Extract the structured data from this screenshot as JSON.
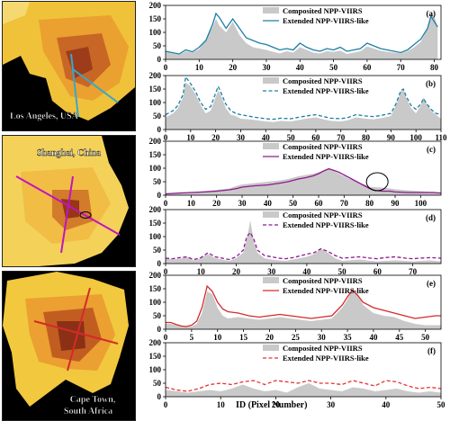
{
  "maps": [
    {
      "label_lines": [
        "Los Angeles, USA"
      ],
      "label_pos": "bottom",
      "line_color": "#3aa7c9"
    },
    {
      "label_lines": [
        "Shanghai, China"
      ],
      "label_pos": "top",
      "line_color": "#c014c0"
    },
    {
      "label_lines": [
        "Cape Town,",
        "South Africa"
      ],
      "label_pos": "bottom",
      "line_color": "#d42a2a"
    }
  ],
  "x_axis_title": "ID (Pixel Number)",
  "chart_data": [
    {
      "type": "area+line",
      "panel_label": "(a)",
      "ylim": [
        0,
        200
      ],
      "yticks": [
        0,
        50,
        100,
        150,
        200
      ],
      "xlim": [
        0,
        82
      ],
      "xticks": [
        0,
        10,
        20,
        30,
        40,
        50,
        60,
        70,
        80
      ],
      "line_color": "#1b7fa4",
      "dash": false,
      "legend": [
        "Composited NPP-VIIRS",
        "Extended NPP-VIIRS-like"
      ],
      "x": [
        0,
        2,
        4,
        6,
        8,
        10,
        12,
        14,
        15,
        16,
        18,
        20,
        22,
        24,
        26,
        28,
        30,
        32,
        34,
        36,
        38,
        40,
        42,
        44,
        46,
        48,
        50,
        52,
        54,
        56,
        58,
        60,
        62,
        64,
        66,
        68,
        70,
        72,
        74,
        76,
        78,
        79,
        80,
        81
      ],
      "composited": [
        28,
        22,
        18,
        30,
        25,
        38,
        75,
        120,
        150,
        125,
        100,
        140,
        90,
        60,
        45,
        40,
        35,
        28,
        22,
        30,
        25,
        45,
        35,
        25,
        22,
        30,
        28,
        32,
        20,
        25,
        30,
        48,
        40,
        32,
        28,
        25,
        22,
        30,
        45,
        65,
        115,
        170,
        160,
        120
      ],
      "extended": [
        30,
        25,
        20,
        35,
        28,
        45,
        70,
        130,
        170,
        155,
        115,
        150,
        115,
        80,
        70,
        60,
        55,
        45,
        35,
        40,
        35,
        60,
        45,
        35,
        30,
        40,
        35,
        45,
        30,
        35,
        40,
        60,
        50,
        40,
        35,
        30,
        25,
        35,
        55,
        75,
        115,
        160,
        140,
        120
      ]
    },
    {
      "type": "area+line",
      "panel_label": "(b)",
      "ylim": [
        0,
        200
      ],
      "yticks": [
        0,
        50,
        100,
        150,
        200
      ],
      "xlim": [
        0,
        110
      ],
      "xticks": [
        0,
        10,
        20,
        30,
        40,
        50,
        60,
        70,
        80,
        90,
        100,
        110
      ],
      "line_color": "#1b7fa4",
      "dash": true,
      "legend": [
        "Composited NPP-VIIRS",
        "Extended NPP-VIIRS-like"
      ],
      "x": [
        0,
        3,
        5,
        7,
        8,
        10,
        12,
        14,
        16,
        18,
        20,
        21,
        22,
        24,
        26,
        28,
        30,
        33,
        36,
        40,
        43,
        46,
        50,
        53,
        56,
        60,
        63,
        66,
        70,
        73,
        76,
        80,
        83,
        86,
        90,
        92,
        94,
        95,
        96,
        98,
        100,
        102,
        103,
        104,
        106,
        108,
        110
      ],
      "composited": [
        45,
        60,
        80,
        120,
        175,
        160,
        130,
        90,
        60,
        70,
        120,
        145,
        130,
        80,
        55,
        50,
        40,
        38,
        35,
        30,
        28,
        32,
        30,
        35,
        40,
        45,
        38,
        32,
        30,
        35,
        45,
        40,
        38,
        42,
        50,
        90,
        140,
        150,
        120,
        80,
        60,
        90,
        120,
        100,
        70,
        55,
        40
      ],
      "extended": [
        55,
        70,
        90,
        130,
        195,
        170,
        140,
        100,
        75,
        85,
        135,
        160,
        140,
        95,
        70,
        60,
        55,
        50,
        45,
        40,
        38,
        42,
        40,
        45,
        50,
        55,
        48,
        42,
        40,
        45,
        55,
        50,
        48,
        52,
        60,
        95,
        145,
        150,
        125,
        90,
        75,
        95,
        115,
        100,
        75,
        60,
        55
      ]
    },
    {
      "type": "area+line",
      "panel_label": "(c)",
      "ylim": [
        0,
        200
      ],
      "yticks": [
        0,
        50,
        100,
        150,
        200
      ],
      "xlim": [
        0,
        108
      ],
      "xticks": [
        0,
        10,
        20,
        30,
        40,
        50,
        60,
        70,
        80,
        90,
        100
      ],
      "line_color": "#8e1a8e",
      "dash": false,
      "legend": [
        "Composited NPP-VIIRS",
        "Extended NPP-VIIRS-like"
      ],
      "x": [
        0,
        5,
        10,
        15,
        20,
        25,
        28,
        30,
        35,
        40,
        45,
        48,
        50,
        52,
        55,
        58,
        60,
        62,
        64,
        65,
        66,
        68,
        70,
        72,
        74,
        76,
        78,
        80,
        82,
        85,
        88,
        90,
        95,
        100,
        105,
        108
      ],
      "composited": [
        5,
        8,
        10,
        15,
        20,
        25,
        35,
        40,
        45,
        50,
        55,
        60,
        65,
        70,
        75,
        80,
        85,
        90,
        100,
        95,
        90,
        80,
        70,
        60,
        55,
        45,
        40,
        30,
        30,
        28,
        25,
        22,
        18,
        15,
        12,
        10
      ],
      "extended": [
        5,
        8,
        10,
        12,
        15,
        20,
        25,
        30,
        35,
        38,
        45,
        50,
        55,
        60,
        65,
        72,
        80,
        90,
        98,
        95,
        92,
        85,
        75,
        65,
        55,
        45,
        35,
        25,
        18,
        15,
        15,
        12,
        10,
        10,
        10,
        8
      ]
    },
    {
      "type": "area+line",
      "panel_label": "(d)",
      "ylim": [
        0,
        200
      ],
      "yticks": [
        0,
        50,
        100,
        150,
        200
      ],
      "xlim": [
        0,
        78
      ],
      "xticks": [
        0,
        10,
        20,
        30,
        40,
        50,
        60,
        70
      ],
      "line_color": "#8e1a8e",
      "dash": true,
      "legend": [
        "Composited NPP-VIIRS",
        "Extended NPP-VIIRS-like"
      ],
      "x": [
        0,
        2,
        4,
        6,
        8,
        10,
        12,
        14,
        16,
        18,
        20,
        22,
        23,
        24,
        25,
        26,
        28,
        30,
        32,
        34,
        36,
        38,
        40,
        42,
        44,
        46,
        48,
        50,
        52,
        55,
        58,
        60,
        62,
        65,
        68,
        70,
        72,
        75,
        78
      ],
      "composited": [
        20,
        15,
        18,
        25,
        12,
        20,
        35,
        20,
        15,
        10,
        20,
        40,
        90,
        160,
        80,
        40,
        20,
        15,
        12,
        10,
        15,
        20,
        25,
        35,
        55,
        40,
        20,
        10,
        12,
        15,
        10,
        8,
        10,
        12,
        10,
        8,
        10,
        12,
        8
      ],
      "extended": [
        20,
        18,
        22,
        25,
        15,
        22,
        40,
        25,
        20,
        15,
        25,
        50,
        100,
        115,
        90,
        50,
        30,
        25,
        20,
        18,
        22,
        28,
        35,
        40,
        55,
        45,
        30,
        20,
        22,
        25,
        20,
        18,
        22,
        25,
        20,
        18,
        20,
        22,
        20
      ]
    },
    {
      "type": "area+line",
      "panel_label": "(e)",
      "ylim": [
        0,
        200
      ],
      "yticks": [
        0,
        50,
        100,
        150,
        200
      ],
      "xlim": [
        0,
        53
      ],
      "xticks": [
        0,
        5,
        10,
        15,
        20,
        25,
        30,
        35,
        40,
        45,
        50
      ],
      "line_color": "#d42a2a",
      "dash": false,
      "legend": [
        "Composited NPP-VIIRS",
        "Extended NPP-VIIRS-like"
      ],
      "x": [
        0,
        1,
        2,
        3,
        4,
        5,
        6,
        7,
        8,
        9,
        10,
        11,
        12,
        14,
        16,
        18,
        20,
        22,
        24,
        26,
        28,
        30,
        32,
        33,
        34,
        35,
        36,
        37,
        38,
        40,
        42,
        44,
        46,
        48,
        50,
        52,
        53
      ],
      "composited": [
        20,
        20,
        15,
        10,
        8,
        10,
        20,
        60,
        140,
        130,
        80,
        50,
        40,
        45,
        40,
        35,
        40,
        45,
        40,
        35,
        30,
        35,
        40,
        60,
        80,
        110,
        150,
        130,
        90,
        60,
        50,
        45,
        30,
        20,
        15,
        15,
        15
      ],
      "extended": [
        25,
        25,
        18,
        12,
        10,
        15,
        30,
        80,
        160,
        140,
        100,
        75,
        65,
        60,
        50,
        45,
        50,
        55,
        50,
        45,
        40,
        45,
        50,
        70,
        90,
        120,
        145,
        125,
        100,
        80,
        70,
        60,
        50,
        40,
        45,
        50,
        50
      ]
    },
    {
      "type": "area+line",
      "panel_label": "(f)",
      "ylim": [
        0,
        200
      ],
      "yticks": [
        0,
        50,
        100,
        150,
        200
      ],
      "xlim": [
        0,
        50
      ],
      "xticks": [
        0,
        10,
        20,
        30,
        40,
        50
      ],
      "line_color": "#e83030",
      "dash": true,
      "legend": [
        "Composited NPP-VIIRS",
        "Extended NPP-VIIRS-like"
      ],
      "x": [
        0,
        2,
        4,
        6,
        8,
        10,
        12,
        14,
        16,
        18,
        20,
        22,
        24,
        26,
        28,
        30,
        32,
        34,
        36,
        38,
        40,
        42,
        44,
        46,
        48,
        50
      ],
      "composited": [
        25,
        20,
        15,
        20,
        25,
        20,
        30,
        45,
        30,
        20,
        25,
        15,
        35,
        50,
        30,
        25,
        20,
        35,
        30,
        20,
        25,
        30,
        20,
        15,
        20,
        15
      ],
      "extended": [
        35,
        25,
        20,
        30,
        45,
        50,
        45,
        55,
        60,
        45,
        60,
        55,
        50,
        60,
        50,
        50,
        45,
        60,
        50,
        40,
        60,
        55,
        40,
        30,
        35,
        30
      ]
    }
  ]
}
